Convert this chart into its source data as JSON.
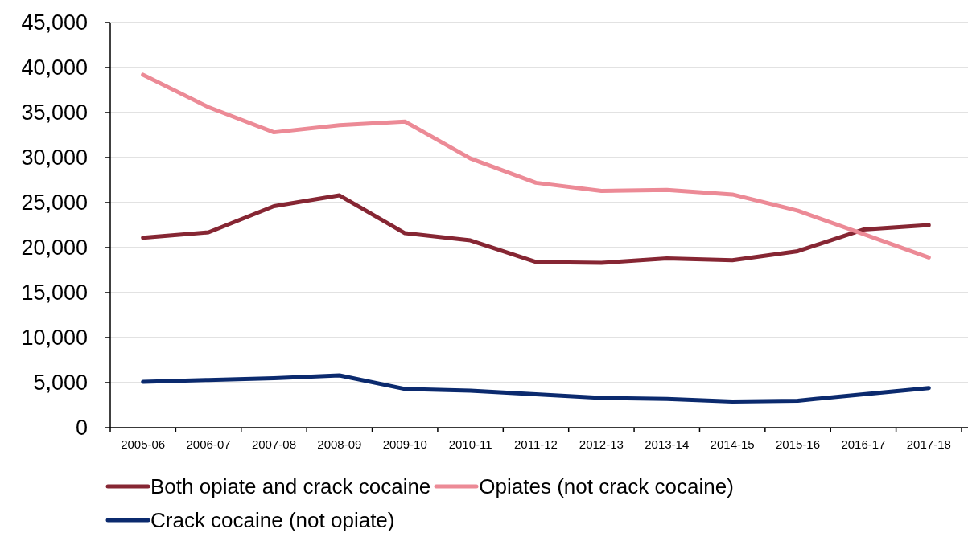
{
  "chart_data": {
    "type": "line",
    "categories": [
      "2005-06",
      "2006-07",
      "2007-08",
      "2008-09",
      "2009-10",
      "2010-11",
      "2011-12",
      "2012-13",
      "2013-14",
      "2014-15",
      "2015-16",
      "2016-17",
      "2017-18"
    ],
    "series": [
      {
        "name": "Both opiate and crack cocaine",
        "color": "#862633",
        "values": [
          21100,
          21700,
          24600,
          25800,
          21600,
          20800,
          18400,
          18300,
          18800,
          18600,
          19600,
          22000,
          22500
        ]
      },
      {
        "name": "Opiates (not crack cocaine)",
        "color": "#ec8a96",
        "values": [
          39200,
          35600,
          32800,
          33600,
          34000,
          29900,
          27200,
          26300,
          26400,
          25900,
          24100,
          21500,
          18900
        ]
      },
      {
        "name": "Crack cocaine (not opiate)",
        "color": "#0b2a6e",
        "values": [
          5100,
          5300,
          5500,
          5800,
          4300,
          4100,
          3700,
          3300,
          3200,
          2900,
          3000,
          3700,
          4400
        ]
      }
    ],
    "ylim": [
      0,
      45000
    ],
    "yticks": [
      0,
      {
        "value": 5000,
        "label": "5,000"
      },
      {
        "value": 10000,
        "label": "10,000"
      },
      {
        "value": 15000,
        "label": "15,000"
      },
      {
        "value": 20000,
        "label": "20,000"
      },
      {
        "value": 25000,
        "label": "25,000"
      },
      {
        "value": 30000,
        "label": "30,000"
      },
      {
        "value": 35000,
        "label": "35,000"
      },
      {
        "value": 40000,
        "label": "40,000"
      },
      {
        "value": 45000,
        "label": "45,000"
      }
    ],
    "grid": "y",
    "legend": "bottom"
  }
}
